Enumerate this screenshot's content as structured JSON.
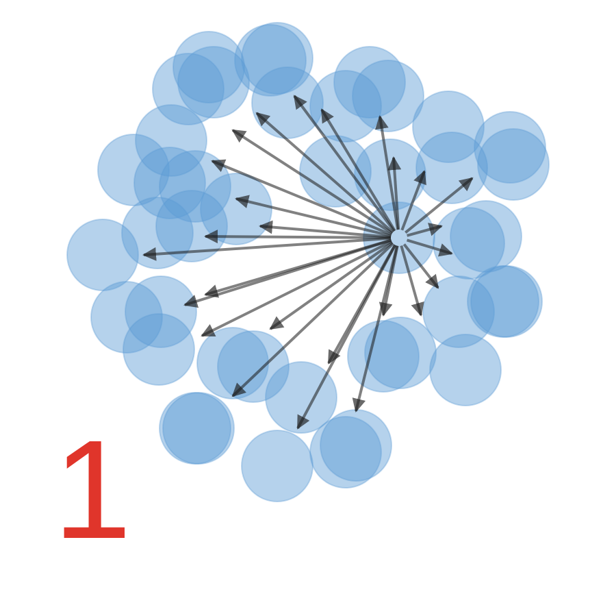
{
  "figure": {
    "label": "1",
    "label_color": "#e0352b",
    "node_color": "#5b9bd5",
    "edge_color": "#1a1a1a",
    "background": "#ffffff"
  }
}
